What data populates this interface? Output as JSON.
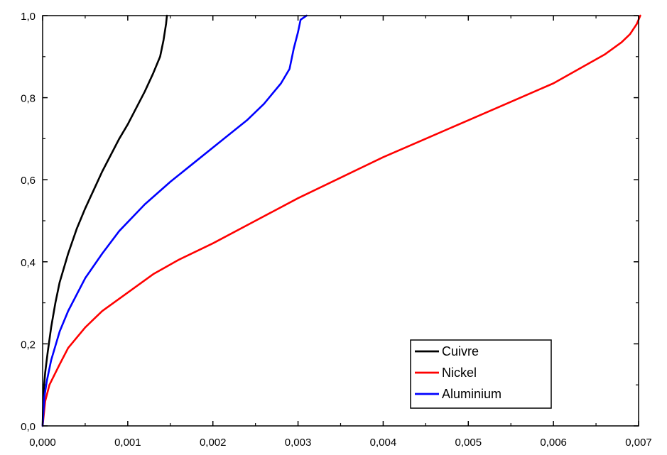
{
  "chart_data": {
    "type": "line",
    "title": "",
    "xlabel": "",
    "ylabel": "",
    "xlim": [
      0,
      0.007
    ],
    "ylim": [
      0,
      1.0
    ],
    "xticks": [
      {
        "value": 0.0,
        "label": "0,000"
      },
      {
        "value": 0.001,
        "label": "0,001"
      },
      {
        "value": 0.002,
        "label": "0,002"
      },
      {
        "value": 0.003,
        "label": "0,003"
      },
      {
        "value": 0.004,
        "label": "0,004"
      },
      {
        "value": 0.005,
        "label": "0,005"
      },
      {
        "value": 0.006,
        "label": "0,006"
      },
      {
        "value": 0.007,
        "label": "0,007"
      }
    ],
    "yticks": [
      {
        "value": 0.0,
        "label": "0,0"
      },
      {
        "value": 0.2,
        "label": "0,2"
      },
      {
        "value": 0.4,
        "label": "0,4"
      },
      {
        "value": 0.6,
        "label": "0,6"
      },
      {
        "value": 0.8,
        "label": "0,8"
      },
      {
        "value": 1.0,
        "label": "1,0"
      }
    ],
    "grid": false,
    "legend_position": "bottom-right",
    "series": [
      {
        "name": "Cuivre",
        "color": "#000000",
        "points": [
          [
            0.0,
            0.0
          ],
          [
            1e-05,
            0.08
          ],
          [
            3e-05,
            0.13
          ],
          [
            6e-05,
            0.18
          ],
          [
            0.0001,
            0.24
          ],
          [
            0.00015,
            0.3
          ],
          [
            0.0002,
            0.35
          ],
          [
            0.0003,
            0.42
          ],
          [
            0.0004,
            0.48
          ],
          [
            0.0005,
            0.53
          ],
          [
            0.0006,
            0.575
          ],
          [
            0.0007,
            0.62
          ],
          [
            0.0008,
            0.66
          ],
          [
            0.0009,
            0.7
          ],
          [
            0.001,
            0.735
          ],
          [
            0.0011,
            0.775
          ],
          [
            0.0012,
            0.815
          ],
          [
            0.0013,
            0.86
          ],
          [
            0.00138,
            0.9
          ],
          [
            0.00142,
            0.94
          ],
          [
            0.00145,
            0.98
          ],
          [
            0.00146,
            1.0
          ]
        ]
      },
      {
        "name": "Nickel",
        "color": "#ff0000",
        "points": [
          [
            0.0,
            0.0
          ],
          [
            3e-05,
            0.06
          ],
          [
            8e-05,
            0.1
          ],
          [
            0.0002,
            0.15
          ],
          [
            0.0003,
            0.19
          ],
          [
            0.0005,
            0.24
          ],
          [
            0.0007,
            0.28
          ],
          [
            0.001,
            0.325
          ],
          [
            0.0013,
            0.37
          ],
          [
            0.0016,
            0.405
          ],
          [
            0.002,
            0.445
          ],
          [
            0.0025,
            0.5
          ],
          [
            0.003,
            0.555
          ],
          [
            0.0035,
            0.605
          ],
          [
            0.004,
            0.655
          ],
          [
            0.0045,
            0.7
          ],
          [
            0.005,
            0.745
          ],
          [
            0.0055,
            0.79
          ],
          [
            0.006,
            0.835
          ],
          [
            0.0063,
            0.87
          ],
          [
            0.0066,
            0.905
          ],
          [
            0.0068,
            0.935
          ],
          [
            0.0069,
            0.955
          ],
          [
            0.00698,
            0.98
          ],
          [
            0.00702,
            1.0
          ]
        ]
      },
      {
        "name": "Aluminium",
        "color": "#0000ff",
        "points": [
          [
            0.0,
            0.0
          ],
          [
            2e-05,
            0.07
          ],
          [
            5e-05,
            0.11
          ],
          [
            0.0001,
            0.16
          ],
          [
            0.0002,
            0.23
          ],
          [
            0.0003,
            0.28
          ],
          [
            0.0005,
            0.36
          ],
          [
            0.0007,
            0.42
          ],
          [
            0.0009,
            0.475
          ],
          [
            0.0012,
            0.54
          ],
          [
            0.0015,
            0.595
          ],
          [
            0.0018,
            0.645
          ],
          [
            0.0021,
            0.695
          ],
          [
            0.0024,
            0.745
          ],
          [
            0.0026,
            0.785
          ],
          [
            0.0028,
            0.835
          ],
          [
            0.0029,
            0.87
          ],
          [
            0.00295,
            0.92
          ],
          [
            0.003,
            0.96
          ],
          [
            0.00303,
            0.99
          ],
          [
            0.0031,
            1.0
          ]
        ]
      }
    ]
  }
}
